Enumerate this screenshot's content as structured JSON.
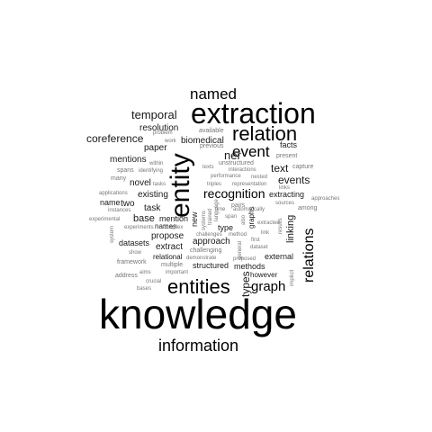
{
  "words": {
    "knowledge": "knowledge",
    "extraction": "extraction",
    "entity": "entity",
    "relation": "relation",
    "entities": "entities",
    "information": "information",
    "named": "named",
    "event": "event",
    "relations": "relations",
    "graph": "graph",
    "recognition": "recognition",
    "temporal": "temporal",
    "coreference": "coreference",
    "ner": "ner",
    "types": "types",
    "text": "text",
    "events": "events",
    "linking": "linking",
    "resolution": "resolution",
    "paper": "paper",
    "biomedical": "biomedical",
    "mentions": "mentions",
    "novel": "novel",
    "existing": "existing",
    "task": "task",
    "two": "two",
    "name": "name",
    "base": "base",
    "mention": "mention",
    "propose": "propose",
    "datasets": "datasets",
    "extract": "extract",
    "relational": "relational",
    "approach": "approach",
    "structured": "structured",
    "methods": "methods",
    "external": "external",
    "however": "however",
    "extracting": "extracting",
    "facts": "facts",
    "new": "new",
    "names": "names",
    "type": "type",
    "graphs": "graphs",
    "available": "available",
    "problem": "problem",
    "work": "work",
    "previous": "previous",
    "present": "present",
    "within": "within",
    "unstructured": "unstructured",
    "capture": "capture",
    "spans": "spans",
    "identifying": "identifying",
    "texts": "texts",
    "interactions": "interactions",
    "many": "many",
    "tasks": "tasks",
    "performance": "performance",
    "nested": "nested",
    "sources": "sources",
    "approaches": "approaches",
    "triples": "triples",
    "representation": "representation",
    "links": "links",
    "applications": "applications",
    "instances": "instances",
    "automatically": "automatically",
    "among": "among",
    "systems": "systems",
    "trained": "trained",
    "language": "language",
    "time": "time",
    "pairs": "pairs",
    "also": "also",
    "span": "span",
    "experimental": "experimental",
    "experiments": "experiments",
    "complex": "complex",
    "challenges": "challenges",
    "method": "method",
    "link": "link",
    "results": "results",
    "system": "system",
    "show": "show",
    "challenging": "challenging",
    "first": "first",
    "framework": "framework",
    "multiple": "multiple",
    "demonstrate": "demonstrate",
    "extracted": "extracted",
    "dataset": "dataset",
    "address": "address",
    "aims": "aims",
    "important": "important",
    "proposed": "proposed",
    "implicit": "implicit",
    "bases": "bases",
    "crucial": "crucial",
    "general": "general"
  }
}
